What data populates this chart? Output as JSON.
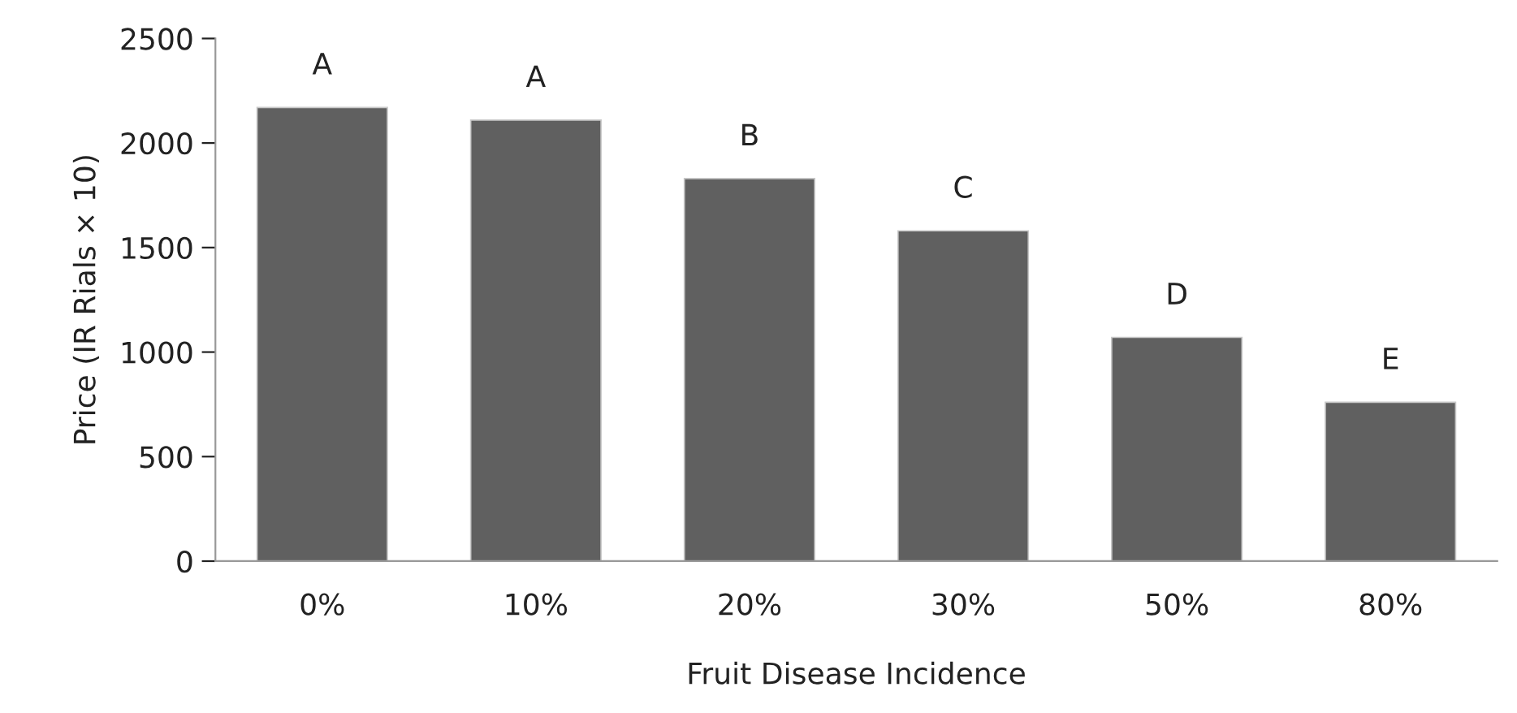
{
  "chart_data": {
    "type": "bar",
    "xlabel": "Fruit Disease Incidence",
    "ylabel": "Price (IR Rials × 10)",
    "categories": [
      "0%",
      "10%",
      "20%",
      "30%",
      "50%",
      "80%"
    ],
    "values": [
      2170,
      2110,
      1830,
      1580,
      1070,
      760
    ],
    "color": "#606060",
    "ylim": [
      0,
      2500
    ],
    "yticks": [
      0,
      500,
      1000,
      1500,
      2000,
      2500
    ],
    "grid": false,
    "annotations": [
      {
        "text": "A",
        "x": "0%",
        "y": 2170
      },
      {
        "text": "A",
        "x": "10%",
        "y": 2110
      },
      {
        "text": "B",
        "x": "20%",
        "y": 1830
      },
      {
        "text": "C",
        "x": "30%",
        "y": 1580
      },
      {
        "text": "D",
        "x": "50%",
        "y": 1070
      },
      {
        "text": "E",
        "x": "80%",
        "y": 760
      }
    ]
  }
}
